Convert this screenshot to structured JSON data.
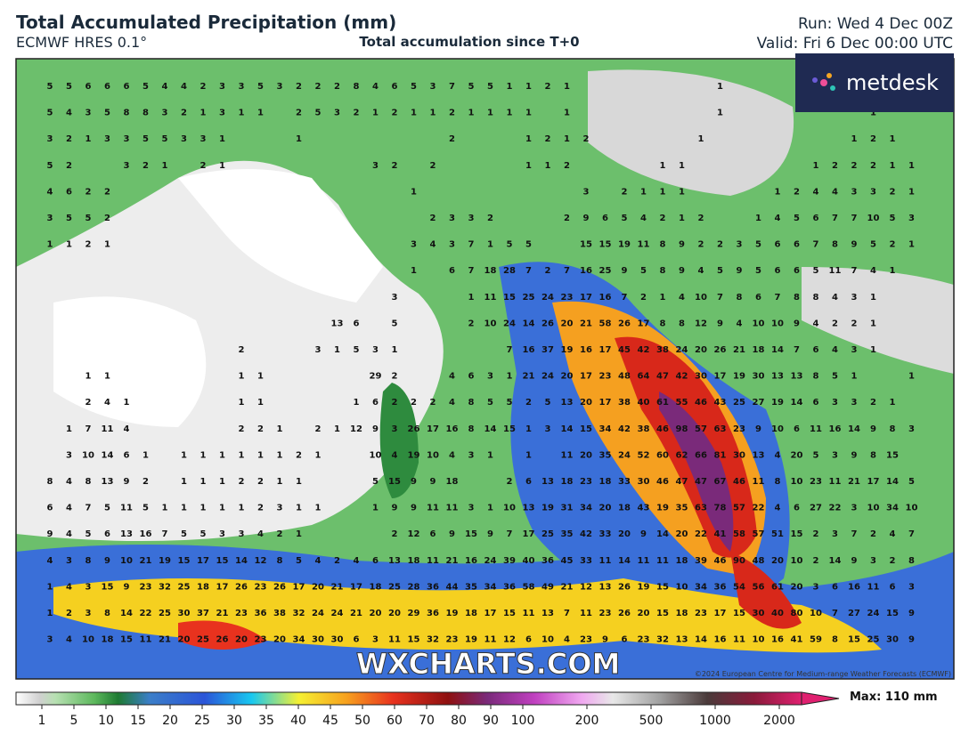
{
  "header": {
    "title": "Total Accumulated Precipitation (mm)",
    "model": "ECMWF HRES 0.1°",
    "subtitle": "Total accumulation since T+0",
    "run": "Run: Wed 4 Dec 00Z",
    "valid": "Valid: Fri 6 Dec 00:00 UTC"
  },
  "logo": "metdesk",
  "watermark": "WXCHARTS.COM",
  "copyright": "©2024 European Centre for Medium-range Weather Forecasts (ECMWF)",
  "colorbar": {
    "ticks": [
      1,
      5,
      10,
      15,
      20,
      25,
      30,
      35,
      40,
      45,
      50,
      60,
      70,
      80,
      90,
      100,
      200,
      500,
      1000,
      2000
    ],
    "max_label": "Max: 110 mm"
  },
  "grid": {
    "rows": [
      [
        5,
        5,
        6,
        6,
        6,
        5,
        4,
        4,
        2,
        3,
        3,
        5,
        3,
        2,
        2,
        2,
        8,
        4,
        6,
        5,
        3,
        7,
        5,
        5,
        1,
        1,
        2,
        1,
        null,
        null,
        null,
        null,
        null,
        null,
        null,
        1,
        null,
        null,
        null,
        null,
        null,
        null,
        null,
        null,
        null,
        null
      ],
      [
        5,
        4,
        3,
        5,
        8,
        8,
        3,
        2,
        1,
        3,
        1,
        1,
        null,
        2,
        5,
        3,
        2,
        1,
        2,
        1,
        1,
        2,
        1,
        1,
        1,
        1,
        null,
        1,
        null,
        null,
        null,
        null,
        null,
        null,
        null,
        1,
        null,
        null,
        null,
        null,
        null,
        null,
        null,
        1,
        null,
        null
      ],
      [
        3,
        2,
        1,
        3,
        3,
        5,
        5,
        3,
        3,
        1,
        null,
        null,
        null,
        1,
        null,
        null,
        null,
        null,
        null,
        null,
        null,
        2,
        null,
        null,
        null,
        1,
        2,
        1,
        2,
        null,
        null,
        null,
        null,
        null,
        1,
        null,
        null,
        null,
        null,
        null,
        null,
        null,
        1,
        2,
        1,
        null
      ],
      [
        5,
        2,
        null,
        null,
        3,
        2,
        1,
        null,
        2,
        1,
        null,
        null,
        null,
        null,
        null,
        null,
        null,
        3,
        2,
        null,
        2,
        null,
        null,
        null,
        null,
        1,
        1,
        2,
        null,
        null,
        null,
        null,
        1,
        1,
        null,
        null,
        null,
        null,
        null,
        null,
        1,
        2,
        2,
        2,
        1,
        1
      ],
      [
        4,
        6,
        2,
        2,
        null,
        null,
        null,
        null,
        null,
        null,
        null,
        null,
        null,
        null,
        null,
        null,
        null,
        null,
        null,
        1,
        null,
        null,
        null,
        null,
        null,
        null,
        null,
        null,
        3,
        null,
        2,
        1,
        1,
        1,
        null,
        null,
        null,
        null,
        1,
        2,
        4,
        4,
        3,
        3,
        2,
        1
      ],
      [
        3,
        5,
        5,
        2,
        null,
        null,
        null,
        null,
        null,
        null,
        null,
        null,
        null,
        null,
        null,
        null,
        null,
        null,
        null,
        null,
        2,
        3,
        3,
        2,
        null,
        null,
        null,
        2,
        9,
        6,
        5,
        4,
        2,
        1,
        2,
        null,
        null,
        1,
        4,
        5,
        6,
        7,
        7,
        10,
        5,
        3
      ],
      [
        1,
        1,
        2,
        1,
        null,
        null,
        null,
        null,
        null,
        null,
        null,
        null,
        null,
        null,
        null,
        null,
        null,
        null,
        null,
        3,
        4,
        3,
        7,
        1,
        5,
        5,
        null,
        null,
        15,
        15,
        19,
        11,
        8,
        9,
        2,
        2,
        3,
        5,
        6,
        6,
        7,
        8,
        9,
        5,
        2,
        1
      ],
      [
        null,
        null,
        null,
        null,
        null,
        null,
        null,
        null,
        null,
        null,
        null,
        null,
        null,
        null,
        null,
        null,
        null,
        null,
        null,
        1,
        null,
        6,
        7,
        18,
        28,
        7,
        2,
        7,
        16,
        25,
        9,
        5,
        8,
        9,
        4,
        5,
        9,
        5,
        6,
        6,
        5,
        11,
        7,
        4,
        1,
        null
      ],
      [
        null,
        null,
        null,
        null,
        null,
        null,
        null,
        null,
        null,
        null,
        null,
        null,
        null,
        null,
        null,
        null,
        null,
        null,
        3,
        null,
        null,
        null,
        1,
        11,
        15,
        25,
        24,
        23,
        17,
        16,
        7,
        2,
        1,
        4,
        10,
        7,
        8,
        6,
        7,
        8,
        8,
        4,
        3,
        1,
        null,
        null
      ],
      [
        null,
        null,
        null,
        null,
        null,
        null,
        null,
        null,
        null,
        null,
        null,
        null,
        null,
        null,
        null,
        13,
        6,
        null,
        5,
        null,
        null,
        null,
        2,
        10,
        24,
        14,
        26,
        20,
        21,
        58,
        26,
        17,
        8,
        8,
        12,
        9,
        4,
        10,
        10,
        9,
        4,
        2,
        2,
        1,
        null,
        null
      ],
      [
        null,
        null,
        null,
        null,
        null,
        null,
        null,
        null,
        null,
        null,
        2,
        null,
        null,
        null,
        3,
        1,
        5,
        3,
        1,
        null,
        null,
        null,
        null,
        null,
        7,
        16,
        37,
        19,
        16,
        17,
        45,
        42,
        38,
        24,
        20,
        26,
        21,
        18,
        14,
        7,
        6,
        4,
        3,
        1,
        null,
        null
      ],
      [
        null,
        null,
        1,
        1,
        null,
        null,
        null,
        null,
        null,
        null,
        1,
        1,
        null,
        null,
        null,
        null,
        null,
        29,
        2,
        null,
        null,
        4,
        6,
        3,
        1,
        21,
        24,
        20,
        17,
        23,
        48,
        64,
        47,
        42,
        30,
        17,
        19,
        30,
        13,
        13,
        8,
        5,
        1,
        null,
        null,
        1
      ],
      [
        null,
        null,
        2,
        4,
        1,
        null,
        null,
        null,
        null,
        null,
        1,
        1,
        null,
        null,
        null,
        null,
        1,
        6,
        2,
        2,
        2,
        4,
        8,
        5,
        5,
        2,
        5,
        13,
        20,
        17,
        38,
        40,
        61,
        55,
        46,
        43,
        25,
        27,
        19,
        14,
        6,
        3,
        3,
        2,
        1,
        null
      ],
      [
        null,
        1,
        7,
        11,
        4,
        null,
        null,
        null,
        null,
        null,
        2,
        2,
        1,
        null,
        2,
        1,
        12,
        9,
        3,
        26,
        17,
        16,
        8,
        14,
        15,
        1,
        3,
        14,
        15,
        34,
        42,
        38,
        46,
        98,
        57,
        63,
        23,
        9,
        10,
        6,
        11,
        16,
        14,
        9,
        8,
        3
      ],
      [
        null,
        3,
        10,
        14,
        6,
        1,
        null,
        1,
        1,
        1,
        1,
        1,
        1,
        2,
        1,
        null,
        null,
        10,
        4,
        19,
        10,
        4,
        3,
        1,
        null,
        1,
        null,
        11,
        20,
        35,
        24,
        52,
        60,
        62,
        66,
        81,
        30,
        13,
        4,
        20,
        5,
        3,
        9,
        8,
        15,
        null
      ],
      [
        8,
        4,
        8,
        13,
        9,
        2,
        null,
        1,
        1,
        1,
        2,
        2,
        1,
        1,
        null,
        null,
        null,
        5,
        15,
        9,
        9,
        18,
        null,
        null,
        2,
        6,
        13,
        18,
        23,
        18,
        33,
        30,
        46,
        47,
        47,
        67,
        46,
        11,
        8,
        10,
        23,
        11,
        21,
        17,
        14,
        5
      ],
      [
        6,
        4,
        7,
        5,
        11,
        5,
        1,
        1,
        1,
        1,
        1,
        2,
        3,
        1,
        1,
        null,
        null,
        1,
        9,
        9,
        11,
        11,
        3,
        1,
        10,
        13,
        19,
        31,
        34,
        20,
        18,
        43,
        19,
        35,
        63,
        78,
        57,
        22,
        4,
        6,
        27,
        22,
        3,
        10,
        34,
        10
      ],
      [
        9,
        4,
        5,
        6,
        13,
        16,
        7,
        5,
        5,
        3,
        3,
        4,
        2,
        1,
        null,
        null,
        null,
        null,
        2,
        12,
        6,
        9,
        15,
        9,
        7,
        17,
        25,
        35,
        42,
        33,
        20,
        9,
        14,
        20,
        22,
        41,
        58,
        57,
        51,
        15,
        2,
        3,
        7,
        2,
        4,
        7
      ],
      [
        4,
        3,
        8,
        9,
        10,
        21,
        19,
        15,
        17,
        15,
        14,
        12,
        8,
        5,
        4,
        2,
        4,
        6,
        13,
        18,
        11,
        21,
        16,
        24,
        39,
        40,
        36,
        45,
        33,
        11,
        14,
        11,
        11,
        18,
        39,
        46,
        90,
        48,
        20,
        10,
        2,
        14,
        9,
        3,
        2,
        8
      ],
      [
        1,
        4,
        3,
        15,
        9,
        23,
        32,
        25,
        18,
        17,
        26,
        23,
        26,
        17,
        20,
        21,
        17,
        18,
        25,
        28,
        36,
        44,
        35,
        34,
        36,
        58,
        49,
        21,
        12,
        13,
        26,
        19,
        15,
        10,
        34,
        36,
        54,
        56,
        61,
        20,
        3,
        6,
        16,
        11,
        6,
        3
      ],
      [
        1,
        2,
        3,
        8,
        14,
        22,
        25,
        30,
        37,
        21,
        23,
        36,
        38,
        32,
        24,
        24,
        21,
        20,
        20,
        29,
        36,
        19,
        18,
        17,
        15,
        11,
        13,
        7,
        11,
        23,
        26,
        20,
        15,
        18,
        23,
        17,
        15,
        30,
        40,
        80,
        10,
        7,
        27,
        24,
        15,
        9
      ],
      [
        3,
        4,
        10,
        18,
        15,
        11,
        21,
        20,
        25,
        26,
        20,
        23,
        20,
        34,
        30,
        30,
        6,
        3,
        11,
        15,
        32,
        23,
        19,
        11,
        12,
        6,
        10,
        4,
        23,
        9,
        6,
        23,
        32,
        13,
        14,
        16,
        11,
        10,
        16,
        41,
        59,
        8,
        15,
        25,
        30,
        9
      ]
    ]
  }
}
